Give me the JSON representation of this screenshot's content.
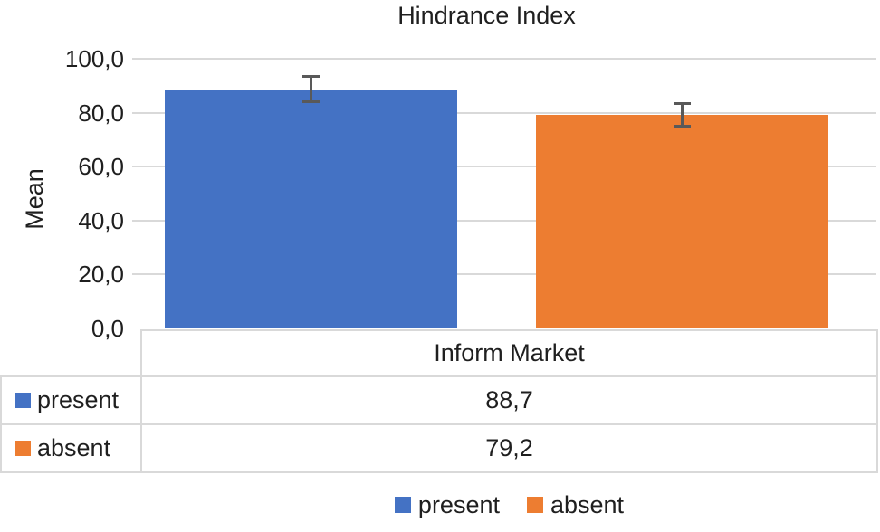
{
  "chart_data": {
    "type": "bar",
    "title": "Hindrance Index",
    "ylabel": "Mean",
    "xlabel": "",
    "categories": [
      "Inform Market"
    ],
    "series": [
      {
        "name": "present",
        "value": 88.7,
        "value_label": "88,7",
        "error": 4.9,
        "color": "#4472C4"
      },
      {
        "name": "absent",
        "value": 79.2,
        "value_label": "79,2",
        "error": 4.2,
        "color": "#ED7D31"
      }
    ],
    "ylim": [
      0,
      100
    ],
    "ytick_step": 20,
    "ytick_labels": [
      "0,0",
      "20,0",
      "40,0",
      "60,0",
      "80,0",
      "100,0"
    ],
    "grid": true,
    "legend_position": "bottom",
    "gridline_color": "#D9D9D9",
    "error_bar_color": "#595959",
    "table_border_color": "#D9D9D9"
  }
}
